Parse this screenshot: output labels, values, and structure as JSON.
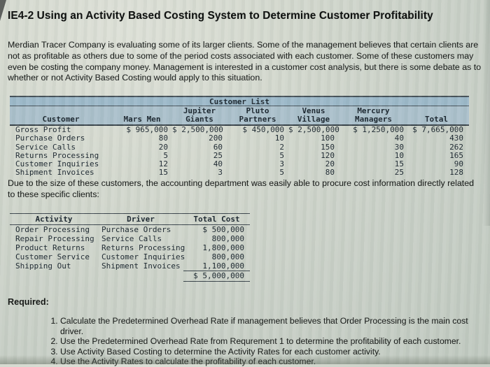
{
  "page": {
    "title": "IE4-2 Using an Activity Based Costing System to Determine Customer Profitability",
    "intro": "Merdian Tracer Company is evaluating some of its larger clients. Some of the management believes that certain clients are not as profitable as others due to some of the period costs associated with each customer. Some of these customers may even be costing the company money. Management is interested in a customer cost analysis, but there is some debate as to whether or not Activity Based Costing would apply to this situation.",
    "note": "Due to the size of these customers, the accounting department was easily able to procure cost information directly related to these specific clients:",
    "required_label": "Required:",
    "requirements": [
      "Calculate the Predetermined Overhead Rate if management believes that Order Processing is the main cost driver.",
      "Use the Predetermined Overhead Rate from Requrement 1 to determine the profitability of each customer.",
      "Use Activity Based Costing to determine the Activity Rates for each customer activity.",
      "Use the Activity Rates to calculate the profitability of each customer."
    ]
  },
  "customer_table": {
    "caption": "Customer List",
    "corner_header": "Customer",
    "columns": [
      "Mars Men",
      "Jupiter\nGiants",
      "Pluto\nPartners",
      "Venus\nVillage",
      "Mercury\nManagers",
      "Total"
    ],
    "rows": [
      {
        "label": "Gross Profit",
        "values": [
          "$ 965,000",
          "$ 2,500,000",
          "$ 450,000",
          "$ 2,500,000",
          "$ 1,250,000",
          "$ 7,665,000"
        ]
      },
      {
        "label": "Purchase Orders",
        "values": [
          "80",
          "200",
          "10",
          "100",
          "40",
          "430"
        ]
      },
      {
        "label": "Service Calls",
        "values": [
          "20",
          "60",
          "2",
          "150",
          "30",
          "262"
        ]
      },
      {
        "label": "Returns Processing",
        "values": [
          "5",
          "25",
          "5",
          "120",
          "10",
          "165"
        ]
      },
      {
        "label": "Customer Inquiries",
        "values": [
          "12",
          "40",
          "3",
          "20",
          "15",
          "90"
        ]
      },
      {
        "label": "Shipment Invoices",
        "values": [
          "15",
          "3",
          "5",
          "80",
          "25",
          "128"
        ]
      }
    ]
  },
  "cost_table": {
    "columns": [
      "Activity",
      "Driver",
      "Total Cost"
    ],
    "rows": [
      {
        "activity": "Order Processing",
        "driver": "Purchase Orders",
        "total_cost": "$ 500,000"
      },
      {
        "activity": "Repair Processing",
        "driver": "Service Calls",
        "total_cost": "800,000"
      },
      {
        "activity": "Product Returns",
        "driver": "Returns Processing",
        "total_cost": "1,800,000"
      },
      {
        "activity": "Customer Service",
        "driver": "Customer Inquiries",
        "total_cost": "800,000"
      },
      {
        "activity": "Shipping Out",
        "driver": "Shipment Invoices",
        "total_cost": "1,100,000"
      }
    ],
    "grand_total": "$ 5,000,000"
  },
  "colors": {
    "caption_band": "#9db9c9",
    "header_band": "#abc0cb",
    "page_background": "#cdd4ca",
    "rule": "#39434a"
  }
}
